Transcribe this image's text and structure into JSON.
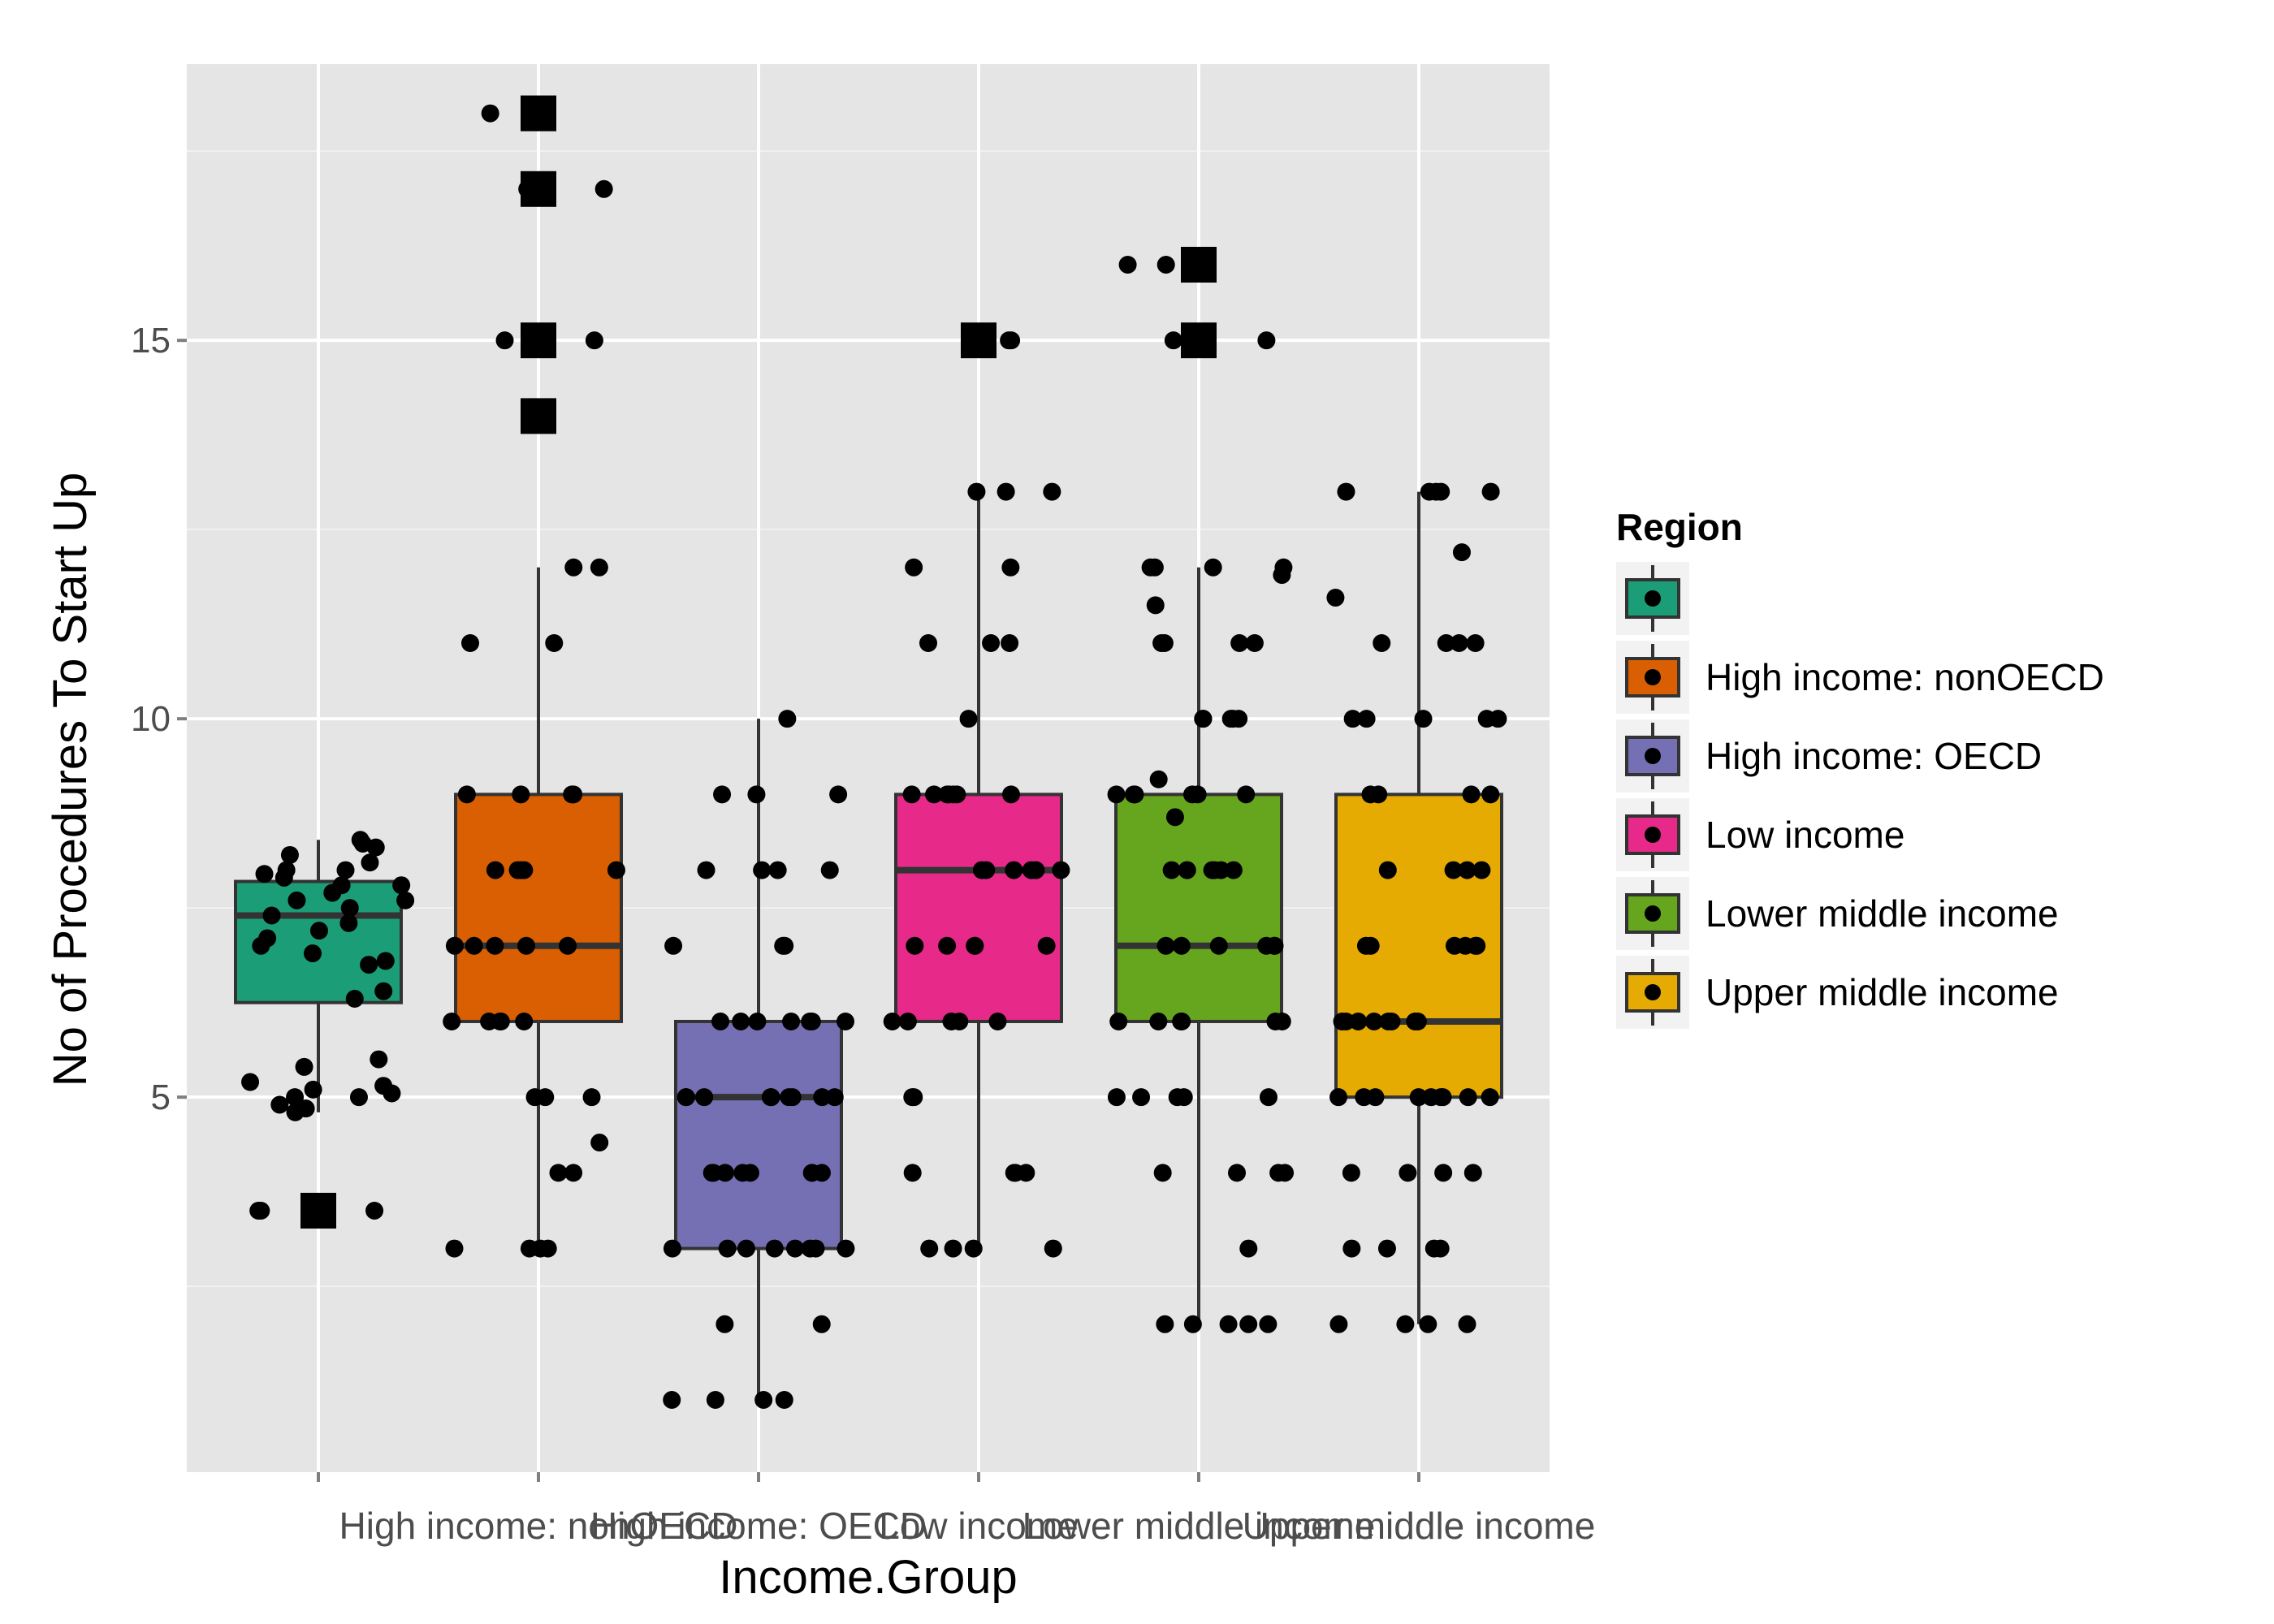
{
  "chart_data": {
    "type": "boxplot",
    "xlabel": "Income.Group",
    "ylabel": "No of Procedures To Start Up",
    "ylim": [
      0.05,
      18.65
    ],
    "yticks": [
      5,
      10,
      15
    ],
    "grid": true,
    "legend_position": "right",
    "legend": {
      "title": "Region",
      "entries": [
        {
          "label": "",
          "color": "#1b9e77"
        },
        {
          "label": "High income: nonOECD",
          "color": "#d95f02"
        },
        {
          "label": "High income: OECD",
          "color": "#7570b3"
        },
        {
          "label": "Low income",
          "color": "#e7298a"
        },
        {
          "label": "Lower middle income",
          "color": "#66a61e"
        },
        {
          "label": "Upper middle income",
          "color": "#e6ab02"
        }
      ]
    },
    "categories": [
      "",
      "High income: nonOECD",
      "High income: OECD",
      "Low income",
      "Lower middle income",
      "Upper middle income"
    ],
    "boxes": [
      {
        "category": "",
        "color": "#1b9e77",
        "q1": 6.25,
        "median": 7.4,
        "q3": 7.85,
        "lower_whisker": 4.8,
        "upper_whisker": 8.4,
        "outliers": [
          3.5
        ]
      },
      {
        "category": "High income: nonOECD",
        "color": "#d95f02",
        "q1": 6.0,
        "median": 7.0,
        "q3": 9.0,
        "lower_whisker": 3.0,
        "upper_whisker": 12.0,
        "outliers": [
          18,
          17,
          15,
          14
        ]
      },
      {
        "category": "High income: OECD",
        "color": "#7570b3",
        "q1": 3.0,
        "median": 5.0,
        "q3": 6.0,
        "lower_whisker": 1.0,
        "upper_whisker": 10.0,
        "outliers": []
      },
      {
        "category": "Low income",
        "color": "#e7298a",
        "q1": 6.0,
        "median": 8.0,
        "q3": 9.0,
        "lower_whisker": 3.0,
        "upper_whisker": 13.0,
        "outliers": [
          15
        ]
      },
      {
        "category": "Lower middle income",
        "color": "#66a61e",
        "q1": 6.0,
        "median": 7.0,
        "q3": 9.0,
        "lower_whisker": 2.0,
        "upper_whisker": 12.0,
        "outliers": [
          16,
          15
        ]
      },
      {
        "category": "Upper middle income",
        "color": "#e6ab02",
        "q1": 5.0,
        "median": 6.0,
        "q3": 9.0,
        "lower_whisker": 2.0,
        "upper_whisker": 13.0,
        "outliers": []
      }
    ],
    "jitter_points": [
      {
        "category": "",
        "values": [
          8.0,
          7.9,
          7.8,
          7.6,
          7.5,
          7.3,
          7.0,
          6.8,
          6.3,
          8.3,
          8.4,
          8.2,
          8.1,
          7.95,
          7.7,
          7.4,
          7.1,
          6.75,
          6.4,
          5.5,
          5.2,
          5.1,
          5.0,
          5.0,
          4.9,
          4.8,
          5.05,
          5.15,
          5.4,
          4.85,
          3.5,
          3.5,
          3.5,
          8.0,
          7.6,
          7.2,
          7.8,
          6.9,
          8.35
        ]
      },
      {
        "category": "High income: nonOECD",
        "values": [
          18,
          17,
          17,
          15,
          15,
          14,
          12,
          12,
          11,
          11,
          9,
          9,
          9,
          9,
          8,
          8,
          8,
          8,
          8,
          7,
          7,
          7,
          7,
          7,
          6,
          6,
          6,
          6,
          6,
          5,
          5,
          5,
          4.4,
          4,
          4,
          3,
          3,
          3,
          3
        ]
      },
      {
        "category": "High income: OECD",
        "values": [
          10,
          9,
          9,
          9,
          8,
          8,
          8,
          8,
          7,
          7,
          7,
          6,
          6,
          6,
          6,
          6,
          6,
          6,
          5,
          5,
          5,
          5,
          5,
          5,
          5,
          5,
          5,
          4,
          4,
          4,
          4,
          4,
          4,
          4,
          4,
          3,
          3,
          3,
          3,
          3,
          3,
          3,
          3,
          2,
          2,
          1,
          1,
          1,
          1
        ]
      },
      {
        "category": "Low income",
        "values": [
          15,
          15,
          13,
          13,
          13,
          12,
          12,
          11,
          11,
          11,
          10,
          9,
          9,
          9,
          9,
          9,
          9,
          9,
          8,
          8,
          8,
          8,
          8,
          8,
          7,
          7,
          7,
          7,
          7,
          6,
          6,
          6,
          6,
          6,
          5,
          5,
          4,
          4,
          4,
          4,
          3,
          3,
          3,
          3
        ]
      },
      {
        "category": "Lower middle income",
        "values": [
          16,
          16,
          15,
          15,
          12,
          12,
          12,
          12,
          11.9,
          11.5,
          11,
          11,
          11,
          11,
          10,
          10,
          10,
          10,
          10,
          9.2,
          9,
          9,
          9,
          9,
          9,
          9,
          8.7,
          8,
          8,
          8,
          8,
          8,
          8,
          8,
          7,
          7,
          7,
          7,
          7,
          7,
          6,
          6,
          6,
          6,
          6,
          6,
          5,
          5,
          5,
          5,
          5,
          4,
          4,
          4,
          4,
          3,
          2,
          2,
          2,
          2,
          2
        ]
      },
      {
        "category": "Upper middle income",
        "values": [
          13,
          13,
          13,
          13,
          13,
          12.2,
          11.6,
          11,
          11,
          11,
          11,
          10,
          10,
          10,
          10,
          10,
          9,
          9,
          9,
          9,
          8,
          8,
          8,
          8,
          7,
          7,
          7,
          7,
          7,
          7,
          6,
          6,
          6,
          6,
          6,
          6,
          6,
          6,
          5,
          5,
          5,
          5,
          5,
          5,
          5,
          5,
          5,
          4,
          4,
          4,
          4,
          3,
          3,
          3,
          3,
          2,
          2,
          2,
          2
        ]
      }
    ]
  }
}
